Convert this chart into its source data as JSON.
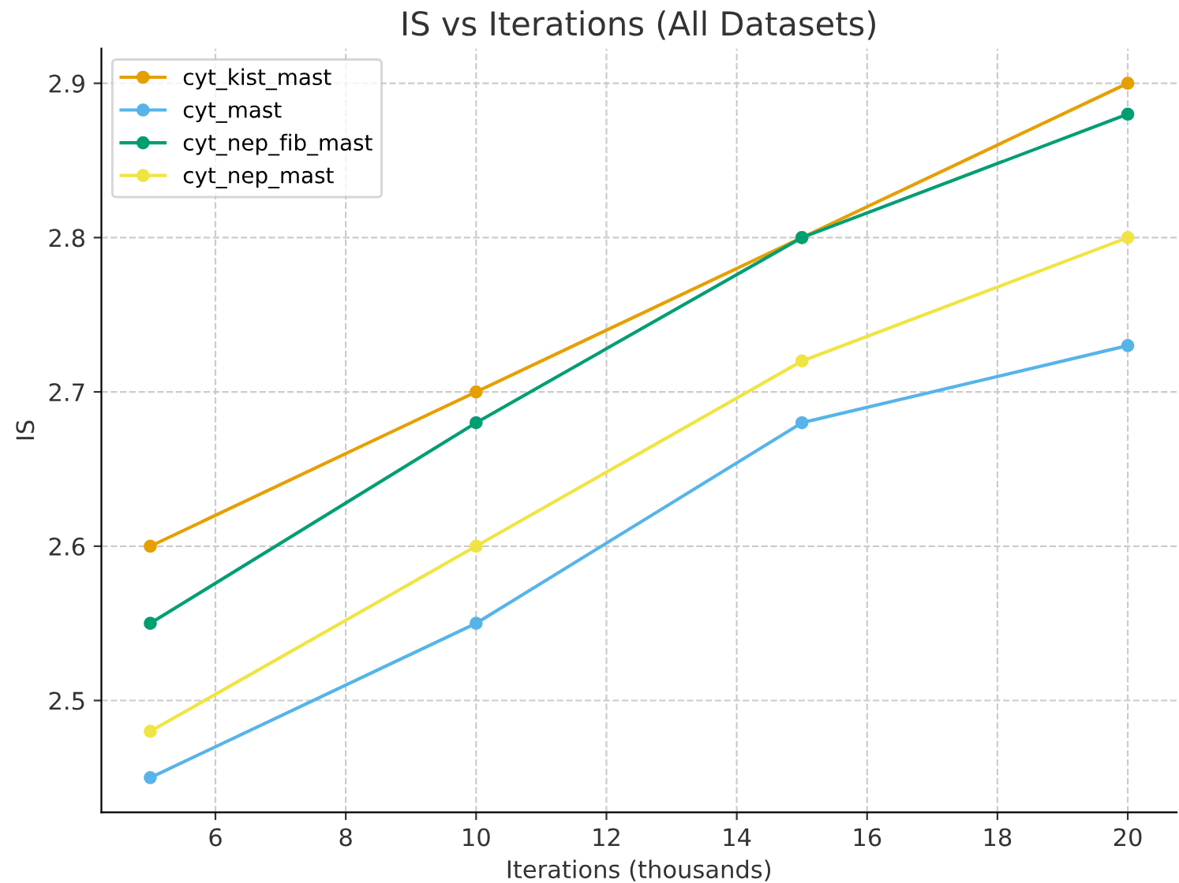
{
  "chart_data": {
    "type": "line",
    "title": "IS vs Iterations (All Datasets)",
    "xlabel": "Iterations (thousands)",
    "ylabel": "IS",
    "x": [
      5,
      10,
      15,
      20
    ],
    "series": [
      {
        "name": "cyt_kist_mast",
        "color": "#e69f00",
        "values": [
          2.6,
          2.7,
          2.8,
          2.9
        ]
      },
      {
        "name": "cyt_mast",
        "color": "#56b4e9",
        "values": [
          2.45,
          2.55,
          2.68,
          2.73
        ]
      },
      {
        "name": "cyt_nep_fib_mast",
        "color": "#009e73",
        "values": [
          2.55,
          2.68,
          2.8,
          2.88
        ]
      },
      {
        "name": "cyt_nep_mast",
        "color": "#f0e442",
        "values": [
          2.48,
          2.6,
          2.72,
          2.8
        ]
      }
    ],
    "xlim": [
      4.25,
      20.75
    ],
    "ylim": [
      2.4275,
      2.9225
    ],
    "xticks": [
      6,
      8,
      10,
      12,
      14,
      16,
      18,
      20
    ],
    "yticks": [
      2.5,
      2.6,
      2.7,
      2.8,
      2.9
    ],
    "grid": true,
    "legend": "top left",
    "marker": "circle",
    "line_style": "solid"
  }
}
